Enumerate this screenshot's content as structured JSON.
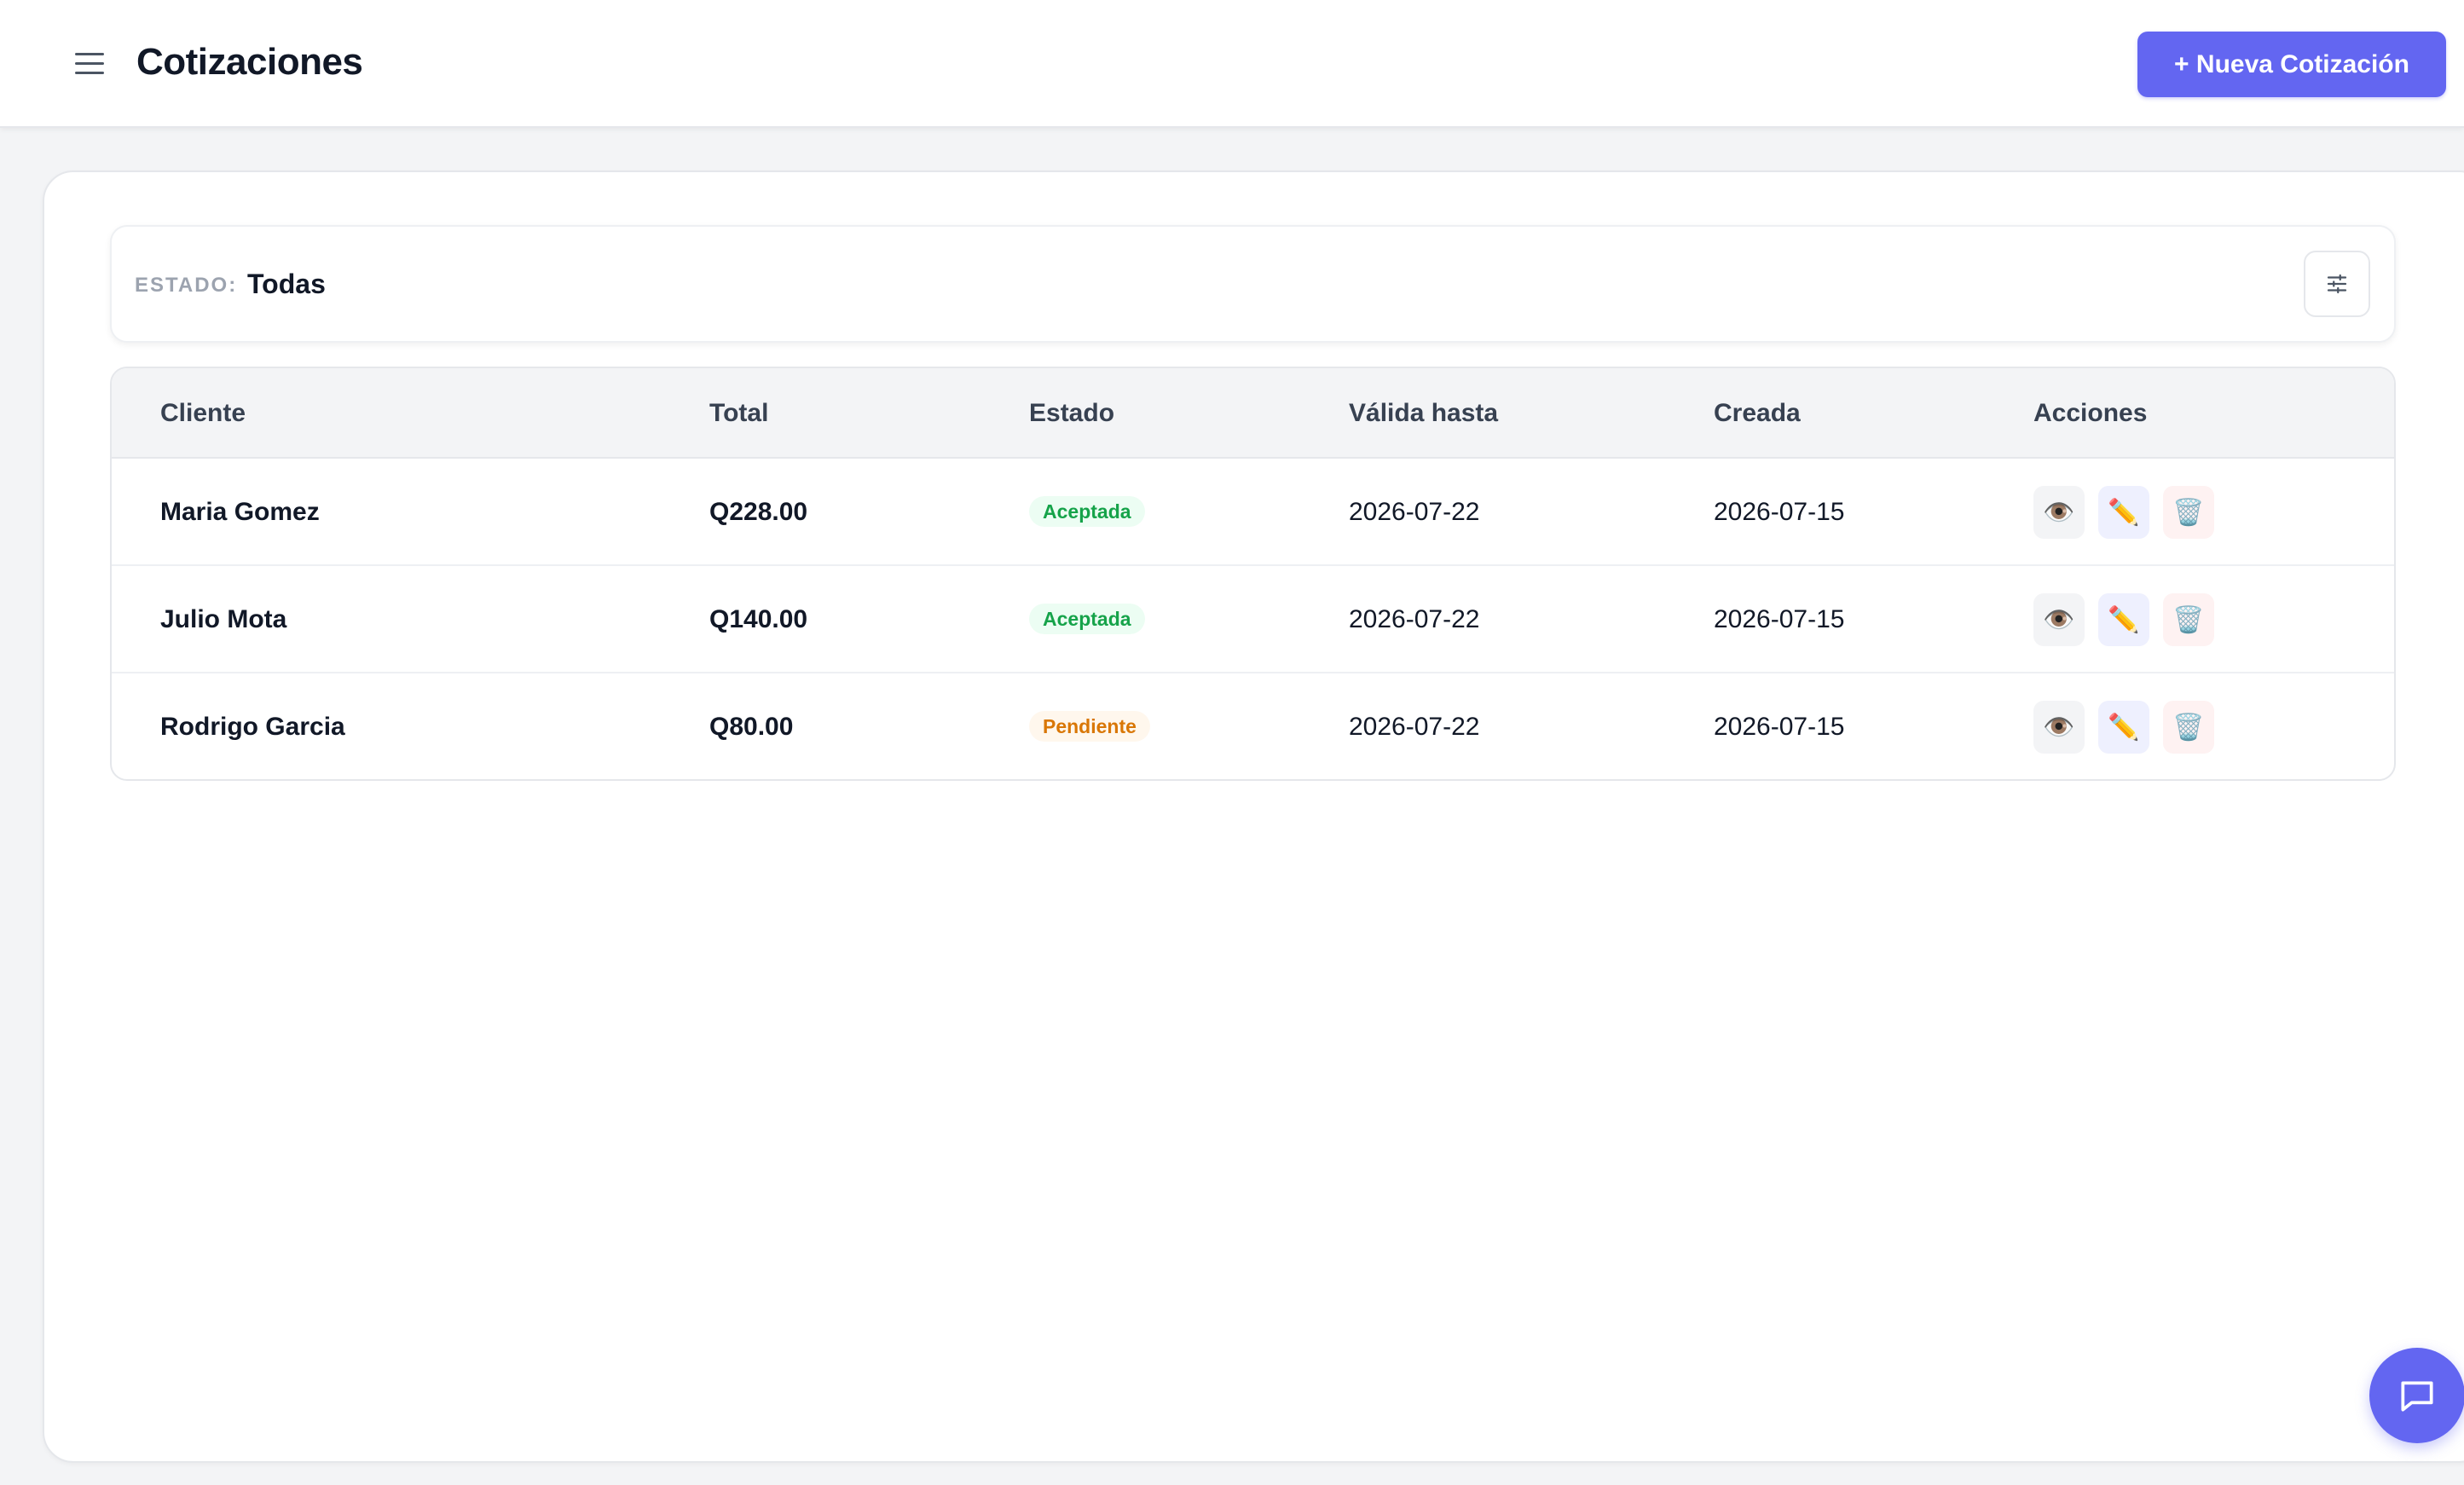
{
  "header": {
    "title": "Cotizaciones",
    "new_button_label": "+ Nueva Cotización",
    "menu_icon": "hamburger-menu-icon"
  },
  "filter": {
    "label": "ESTADO:",
    "value": "Todas",
    "toggle_icon": "sliders-icon"
  },
  "table": {
    "columns": [
      "Cliente",
      "Total",
      "Estado",
      "Válida hasta",
      "Creada",
      "Acciones"
    ],
    "rows": [
      {
        "cliente": "Maria Gomez",
        "total": "Q228.00",
        "estado": "Aceptada",
        "valida_hasta": "2026-07-22",
        "creada": "2026-07-15"
      },
      {
        "cliente": "Julio Mota",
        "total": "Q140.00",
        "estado": "Aceptada",
        "valida_hasta": "2026-07-22",
        "creada": "2026-07-15"
      },
      {
        "cliente": "Rodrigo Garcia",
        "total": "Q80.00",
        "estado": "Pendiente",
        "valida_hasta": "2026-07-22",
        "creada": "2026-07-15"
      }
    ],
    "actions": {
      "view_icon": "👁️",
      "edit_icon": "✏️",
      "delete_icon": "🗑️"
    }
  },
  "chat": {
    "icon": "chat-bubble-icon"
  },
  "colors": {
    "accent": "#6366f1",
    "aceptada_bg": "#ecfdf3",
    "aceptada_text": "#16a34a",
    "pendiente_bg": "#fff7ed",
    "pendiente_text": "#d97706"
  }
}
